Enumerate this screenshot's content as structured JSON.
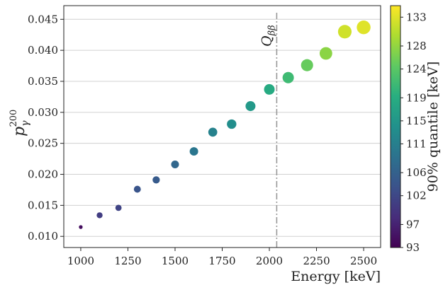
{
  "chart_data": {
    "type": "scatter",
    "xlabel": "Energy [keV]",
    "ylabel_base": "p",
    "ylabel_sub": "γ",
    "ylabel_sup": "200",
    "xlim": [
      910,
      2590
    ],
    "ylim": [
      0.0082,
      0.0472
    ],
    "xticks": [
      1000,
      1250,
      1500,
      1750,
      2000,
      2250,
      2500
    ],
    "yticks": [
      0.01,
      0.015,
      0.02,
      0.025,
      0.03,
      0.035,
      0.04,
      0.045
    ],
    "ytick_labels": [
      "0.010",
      "0.015",
      "0.020",
      "0.025",
      "0.030",
      "0.035",
      "0.040",
      "0.045"
    ],
    "grid": "horizontal",
    "points": [
      {
        "x": 1000,
        "y": 0.0115,
        "q": 94.5
      },
      {
        "x": 1100,
        "y": 0.0134,
        "q": 100.5
      },
      {
        "x": 1200,
        "y": 0.0146,
        "q": 101.5
      },
      {
        "x": 1300,
        "y": 0.0176,
        "q": 104
      },
      {
        "x": 1400,
        "y": 0.0191,
        "q": 105
      },
      {
        "x": 1500,
        "y": 0.0216,
        "q": 107
      },
      {
        "x": 1600,
        "y": 0.0237,
        "q": 109.5
      },
      {
        "x": 1700,
        "y": 0.0268,
        "q": 111.5
      },
      {
        "x": 1800,
        "y": 0.0281,
        "q": 113.5
      },
      {
        "x": 1900,
        "y": 0.031,
        "q": 115.5
      },
      {
        "x": 2000,
        "y": 0.0337,
        "q": 118.5
      },
      {
        "x": 2100,
        "y": 0.0356,
        "q": 121.5
      },
      {
        "x": 2200,
        "y": 0.0376,
        "q": 125
      },
      {
        "x": 2300,
        "y": 0.0395,
        "q": 127.5
      },
      {
        "x": 2400,
        "y": 0.043,
        "q": 132
      },
      {
        "x": 2500,
        "y": 0.0437,
        "q": 133
      }
    ],
    "vline": {
      "x": 2039,
      "label_base": "Q",
      "label_sub": "ββ",
      "color": "#999999"
    },
    "colorbar": {
      "label": "90% quantile [keV]",
      "range": [
        93,
        135
      ],
      "ticks": [
        93,
        97,
        102,
        106,
        111,
        115,
        119,
        124,
        128,
        133
      ],
      "colormap": "viridis"
    }
  }
}
